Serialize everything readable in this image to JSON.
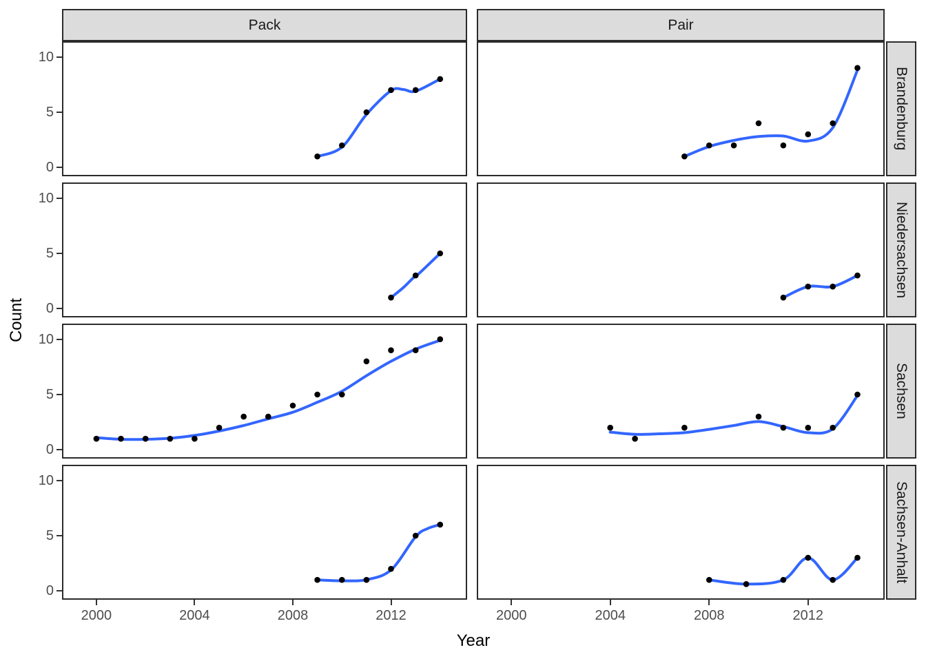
{
  "axis": {
    "x_title": "Year",
    "y_title": "Count"
  },
  "colors": {
    "smooth_line": "#3366FF",
    "point": "#000000",
    "strip_bg": "#DCDCDC",
    "panel_border": "#2B2B2B",
    "tick_text": "#4D4D4D"
  },
  "chart_data": {
    "type": "scatter",
    "title": "",
    "xlabel": "Year",
    "ylabel": "Count",
    "x_ticks": [
      2000,
      2004,
      2008,
      2012
    ],
    "x_tick_labels": [
      "2000",
      "2004",
      "2008",
      "2012"
    ],
    "y_ticks": [
      0,
      5,
      10
    ],
    "y_tick_labels": [
      "0",
      "5",
      "10"
    ],
    "xlim": [
      1998.6,
      2015.1
    ],
    "ylim": [
      -0.79,
      11.41
    ],
    "grid": "off",
    "facet_cols": [
      "Pack",
      "Pair"
    ],
    "facet_rows": [
      "Brandenburg",
      "Niedersachsen",
      "Sachsen",
      "Sachsen-Anhalt"
    ],
    "panels": [
      {
        "col": "Pack",
        "row": "Brandenburg",
        "points": [
          [
            2009,
            1
          ],
          [
            2010,
            2
          ],
          [
            2011,
            5
          ],
          [
            2012,
            7
          ],
          [
            2013,
            7
          ],
          [
            2014,
            8
          ]
        ],
        "smooth": [
          [
            2009,
            1
          ],
          [
            2010,
            1.85
          ],
          [
            2011,
            4.8
          ],
          [
            2012,
            6.95
          ],
          [
            2012.5,
            7.05
          ],
          [
            2013,
            6.9
          ],
          [
            2014,
            8
          ]
        ]
      },
      {
        "col": "Pair",
        "row": "Brandenburg",
        "points": [
          [
            2007,
            1
          ],
          [
            2008,
            2
          ],
          [
            2009,
            2
          ],
          [
            2010,
            4
          ],
          [
            2011,
            2
          ],
          [
            2012,
            3
          ],
          [
            2013,
            4
          ],
          [
            2014,
            9
          ]
        ],
        "smooth": [
          [
            2007,
            1
          ],
          [
            2008,
            1.9
          ],
          [
            2009,
            2.45
          ],
          [
            2010,
            2.8
          ],
          [
            2011,
            2.85
          ],
          [
            2012,
            2.4
          ],
          [
            2013,
            3.6
          ],
          [
            2014,
            8.8
          ]
        ]
      },
      {
        "col": "Pack",
        "row": "Niedersachsen",
        "points": [
          [
            2012,
            1
          ],
          [
            2013,
            3
          ],
          [
            2014,
            5
          ]
        ],
        "smooth": [
          [
            2012,
            1
          ],
          [
            2012.5,
            1.9
          ],
          [
            2013,
            3
          ],
          [
            2013.15,
            3.2
          ],
          [
            2014,
            5
          ]
        ]
      },
      {
        "col": "Pair",
        "row": "Niedersachsen",
        "points": [
          [
            2011,
            1
          ],
          [
            2012,
            2
          ],
          [
            2013,
            2
          ],
          [
            2014,
            3
          ]
        ],
        "smooth": [
          [
            2011,
            1
          ],
          [
            2012,
            2
          ],
          [
            2013,
            2
          ],
          [
            2014,
            3
          ]
        ]
      },
      {
        "col": "Pack",
        "row": "Sachsen",
        "points": [
          [
            2000,
            1
          ],
          [
            2001,
            1
          ],
          [
            2002,
            1
          ],
          [
            2003,
            1
          ],
          [
            2004,
            1
          ],
          [
            2005,
            2
          ],
          [
            2006,
            3
          ],
          [
            2007,
            3
          ],
          [
            2008,
            4
          ],
          [
            2009,
            5
          ],
          [
            2010,
            5
          ],
          [
            2011,
            8
          ],
          [
            2012,
            9
          ],
          [
            2013,
            9
          ],
          [
            2014,
            10
          ]
        ],
        "smooth": [
          [
            2000,
            1.1
          ],
          [
            2001,
            0.95
          ],
          [
            2002,
            0.95
          ],
          [
            2003,
            1.05
          ],
          [
            2004,
            1.3
          ],
          [
            2005,
            1.7
          ],
          [
            2006,
            2.2
          ],
          [
            2007,
            2.8
          ],
          [
            2008,
            3.4
          ],
          [
            2009,
            4.3
          ],
          [
            2010,
            5.3
          ],
          [
            2011,
            6.7
          ],
          [
            2012,
            8.0
          ],
          [
            2013,
            9.1
          ],
          [
            2014,
            9.9
          ]
        ]
      },
      {
        "col": "Pair",
        "row": "Sachsen",
        "points": [
          [
            2004,
            2
          ],
          [
            2005,
            1
          ],
          [
            2007,
            2
          ],
          [
            2010,
            3
          ],
          [
            2011,
            2
          ],
          [
            2012,
            2
          ],
          [
            2013,
            2
          ],
          [
            2014,
            5
          ]
        ],
        "smooth": [
          [
            2004,
            1.6
          ],
          [
            2005,
            1.4
          ],
          [
            2006,
            1.45
          ],
          [
            2007,
            1.55
          ],
          [
            2008,
            1.85
          ],
          [
            2009,
            2.2
          ],
          [
            2010,
            2.55
          ],
          [
            2011,
            2.1
          ],
          [
            2012,
            1.55
          ],
          [
            2013,
            1.9
          ],
          [
            2014,
            4.9
          ]
        ]
      },
      {
        "col": "Pack",
        "row": "Sachsen-Anhalt",
        "points": [
          [
            2009,
            1
          ],
          [
            2010,
            1
          ],
          [
            2011,
            1
          ],
          [
            2012,
            2
          ],
          [
            2013,
            5
          ],
          [
            2014,
            6
          ]
        ],
        "smooth": [
          [
            2009,
            1
          ],
          [
            2010,
            0.92
          ],
          [
            2011,
            1.02
          ],
          [
            2012,
            1.9
          ],
          [
            2013,
            4.9
          ],
          [
            2013.5,
            5.65
          ],
          [
            2014,
            6
          ]
        ]
      },
      {
        "col": "Pair",
        "row": "Sachsen-Anhalt",
        "points": [
          [
            2008,
            1
          ],
          [
            2009.5,
            0.62
          ],
          [
            2011,
            1
          ],
          [
            2012,
            3
          ],
          [
            2013,
            1
          ],
          [
            2014,
            3
          ]
        ],
        "smooth": [
          [
            2008,
            1
          ],
          [
            2009.5,
            0.62
          ],
          [
            2011,
            1
          ],
          [
            2012,
            3
          ],
          [
            2013,
            1
          ],
          [
            2014,
            3
          ]
        ]
      }
    ]
  }
}
